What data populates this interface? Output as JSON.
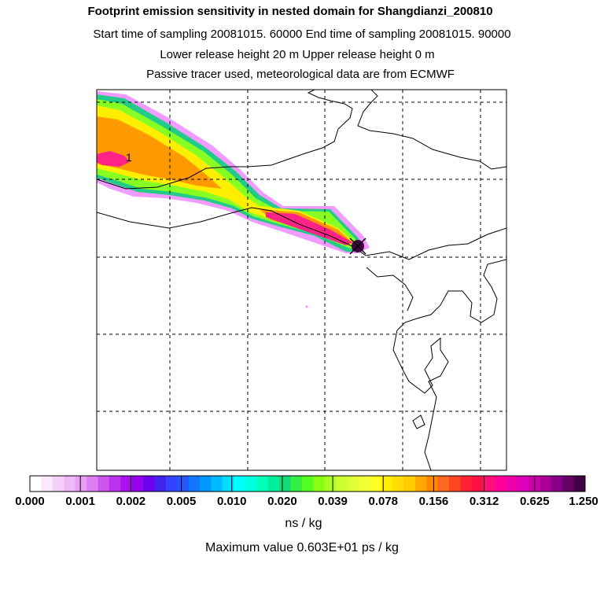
{
  "header": {
    "title": "Footprint emission sensitivity in nested domain for Shangdianzi_200810",
    "line2": "Start time of sampling 20081015. 60000     End time of sampling 20081015. 90000",
    "line3": "Lower release height   20 m          Upper release height    0 m",
    "line4": "Passive tracer used, meteorological data are from ECMWF"
  },
  "map": {
    "contour_label": "1",
    "receptor_marker": "x-marker-icon",
    "plume_colors": [
      "#ee88ff",
      "#22cc88",
      "#88ff22",
      "#ffee00",
      "#ff9900",
      "#ff2288"
    ]
  },
  "colorbar": {
    "labels": [
      "0.000",
      "0.001",
      "0.002",
      "0.005",
      "0.010",
      "0.020",
      "0.039",
      "0.078",
      "0.156",
      "0.312",
      "0.625",
      "1.250"
    ],
    "units": "ns / kg",
    "max_value": "Maximum value  0.603E+01 ps / kg",
    "colors": [
      "#ffffff",
      "#fbe8fb",
      "#f5d0f8",
      "#efb8f6",
      "#e8a0f4",
      "#dd7ff0",
      "#cc55ee",
      "#bb33ee",
      "#aa11ee",
      "#9900ee",
      "#6a00ee",
      "#4422ee",
      "#3344ff",
      "#2255ff",
      "#1177ff",
      "#0099ff",
      "#00bbff",
      "#00ddff",
      "#00ffff",
      "#00ffdd",
      "#00ffbb",
      "#00ee99",
      "#11dd77",
      "#33ee44",
      "#55ff22",
      "#88ff11",
      "#aaff22",
      "#ccff33",
      "#ddff33",
      "#eeff33",
      "#ffff22",
      "#ffee00",
      "#ffdd00",
      "#ffcc00",
      "#ffaa00",
      "#ff8800",
      "#ff6622",
      "#ff4422",
      "#ff2233",
      "#ff1144",
      "#ff1177",
      "#ff0099",
      "#ee00aa",
      "#dd00bb",
      "#cc00aa",
      "#aa0099",
      "#880088",
      "#660066",
      "#440044"
    ]
  }
}
